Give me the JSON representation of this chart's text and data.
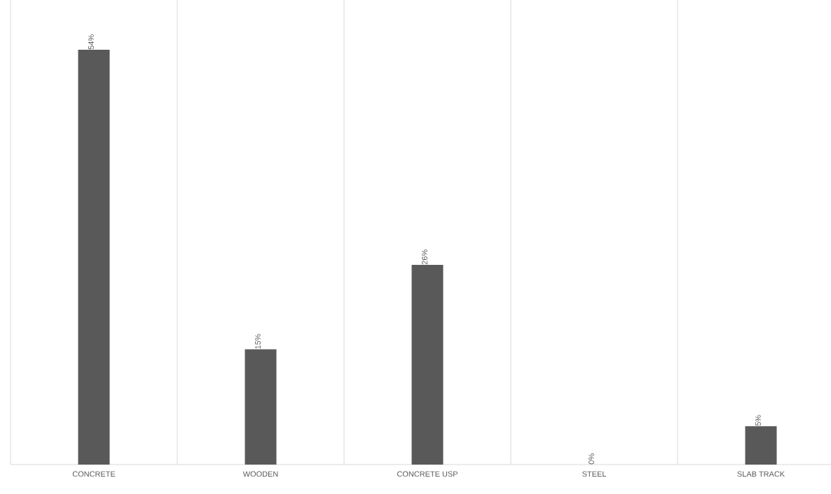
{
  "chart_data": {
    "type": "bar",
    "categories": [
      "CONCRETE",
      "WOODEN",
      "CONCRETE USP",
      "STEEL",
      "SLAB TRACK"
    ],
    "values": [
      54,
      15,
      26,
      0,
      5
    ],
    "value_labels": [
      "54%",
      "15%",
      "26%",
      "0%",
      "5%"
    ],
    "color": "#595959",
    "grid": "x"
  }
}
